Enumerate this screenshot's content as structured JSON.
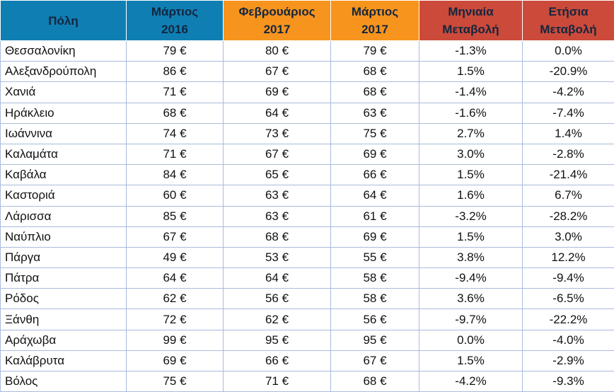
{
  "colors": {
    "blue_header": "#0f7fb3",
    "orange_header": "#f7941d",
    "red_header": "#cc4a3a",
    "grid": "#a9bcdb"
  },
  "headers": [
    {
      "l1": "Πόλη",
      "l2": ""
    },
    {
      "l1": "Μάρτιος",
      "l2": "2016"
    },
    {
      "l1": "Φεβρουάριος",
      "l2": "2017"
    },
    {
      "l1": "Μάρτιος",
      "l2": "2017"
    },
    {
      "l1": "Μηνιαία",
      "l2": "Μεταβολή"
    },
    {
      "l1": "Ετήσια",
      "l2": "Μεταβολή"
    }
  ],
  "rows": [
    [
      "Θεσσαλονίκη",
      "79 €",
      "80 €",
      "79 €",
      "-1.3%",
      "0.0%"
    ],
    [
      "Αλεξανδρούπολη",
      "86 €",
      "67 €",
      "68 €",
      "1.5%",
      "-20.9%"
    ],
    [
      "Χανιά",
      "71 €",
      "69 €",
      "68 €",
      "-1.4%",
      "-4.2%"
    ],
    [
      "Ηράκλειο",
      "68 €",
      "64 €",
      "63 €",
      "-1.6%",
      "-7.4%"
    ],
    [
      "Ιωάννινα",
      "74 €",
      "73 €",
      "75 €",
      "2.7%",
      "1.4%"
    ],
    [
      "Καλαμάτα",
      "71 €",
      "67 €",
      "69 €",
      "3.0%",
      "-2.8%"
    ],
    [
      "Καβάλα",
      "84 €",
      "65 €",
      "66 €",
      "1.5%",
      "-21.4%"
    ],
    [
      "Καστοριά",
      "60 €",
      "63 €",
      "64 €",
      "1.6%",
      "6.7%"
    ],
    [
      "Λάρισσα",
      "85 €",
      "63 €",
      "61 €",
      "-3.2%",
      "-28.2%"
    ],
    [
      "Ναύπλιο",
      "67 €",
      "68 €",
      "69 €",
      "1.5%",
      "3.0%"
    ],
    [
      "Πάργα",
      "49 €",
      "53 €",
      "55 €",
      "3.8%",
      "12.2%"
    ],
    [
      "Πάτρα",
      "64 €",
      "64 €",
      "58 €",
      "-9.4%",
      "-9.4%"
    ],
    [
      "Ρόδος",
      "62 €",
      "56 €",
      "58 €",
      "3.6%",
      "-6.5%"
    ],
    [
      "Ξάνθη",
      "72 €",
      "62 €",
      "56 €",
      "-9.7%",
      "-22.2%"
    ],
    [
      "Αράχωβα",
      "99 €",
      "95 €",
      "95 €",
      "0.0%",
      "-4.0%"
    ],
    [
      "Καλάβρυτα",
      "69 €",
      "66 €",
      "67 €",
      "1.5%",
      "-2.9%"
    ],
    [
      "Βόλος",
      "75 €",
      "71 €",
      "68 €",
      "-4.2%",
      "-9.3%"
    ]
  ]
}
